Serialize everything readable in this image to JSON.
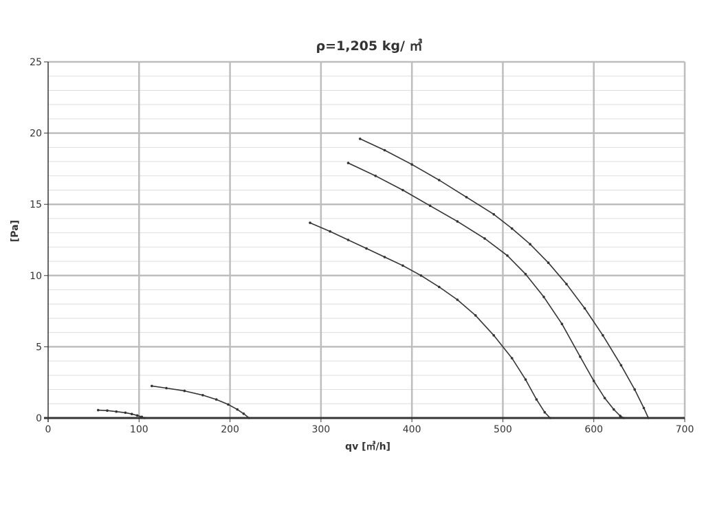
{
  "chart_data": {
    "type": "line",
    "title": "ρ=1,205 kg/ ㎥",
    "xlabel": "qv [㎥/h]",
    "ylabel": "[Pa]",
    "xlim": [
      0,
      700
    ],
    "ylim": [
      0,
      25
    ],
    "x_ticks": [
      "0",
      "100",
      "200",
      "300",
      "400",
      "500",
      "600",
      "700"
    ],
    "y_ticks": [
      "0",
      "5",
      "10",
      "15",
      "20",
      "25"
    ],
    "grid": "major and minor",
    "legend": "none",
    "colors": {
      "line": "#333333",
      "major_grid": "#bdbdbd",
      "minor_grid": "#dedede"
    },
    "series": [
      {
        "x": [
          55,
          65,
          75,
          85,
          92,
          98,
          103,
          106
        ],
        "y": [
          0.55,
          0.52,
          0.45,
          0.37,
          0.28,
          0.18,
          0.08,
          0.0
        ]
      },
      {
        "x": [
          114,
          130,
          150,
          170,
          185,
          198,
          208,
          215,
          221
        ],
        "y": [
          2.25,
          2.1,
          1.9,
          1.6,
          1.3,
          0.95,
          0.6,
          0.3,
          0.0
        ]
      },
      {
        "x": [
          288,
          310,
          330,
          350,
          370,
          390,
          410,
          430,
          450,
          470,
          490,
          510,
          525,
          537,
          546,
          552
        ],
        "y": [
          13.7,
          13.1,
          12.5,
          11.9,
          11.3,
          10.7,
          10.0,
          9.2,
          8.3,
          7.2,
          5.8,
          4.2,
          2.7,
          1.3,
          0.4,
          0.0
        ]
      },
      {
        "x": [
          330,
          360,
          390,
          420,
          450,
          480,
          505,
          525,
          545,
          565,
          585,
          600,
          612,
          622,
          629,
          633
        ],
        "y": [
          17.9,
          17.0,
          16.0,
          14.9,
          13.8,
          12.6,
          11.4,
          10.1,
          8.5,
          6.6,
          4.3,
          2.6,
          1.4,
          0.6,
          0.15,
          0.0
        ]
      },
      {
        "x": [
          343,
          370,
          400,
          430,
          460,
          490,
          510,
          530,
          550,
          570,
          590,
          610,
          630,
          645,
          655,
          660
        ],
        "y": [
          19.6,
          18.8,
          17.8,
          16.7,
          15.5,
          14.3,
          13.3,
          12.2,
          10.9,
          9.4,
          7.7,
          5.8,
          3.7,
          2.0,
          0.7,
          0.0
        ]
      }
    ]
  }
}
